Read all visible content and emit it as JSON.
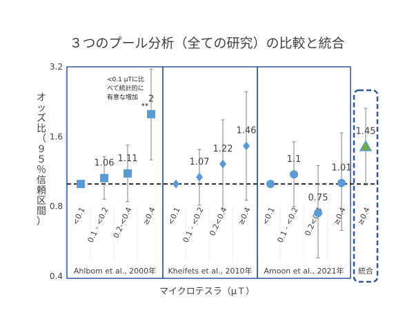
{
  "chart_data": {
    "type": "scatter",
    "title": "３つのプール分析（全ての研究）の比較と統合",
    "ylabel": "オッズ比（９５％信頼区間）",
    "xlabel": "マイクロテスラ（μＴ）",
    "y_scale": "log",
    "ylim": [
      0.4,
      3.2
    ],
    "yticks": [
      "3.2",
      "1.6",
      "0.8",
      "0.4"
    ],
    "ytick_values": [
      3.2,
      1.6,
      0.8,
      0.4
    ],
    "reference_line": 1.0,
    "annotation_text": "<0.1 μTに比べて統計的に有意な増加",
    "annotation_lines": [
      "<0.1 μTに比",
      "べて統計的に",
      "有意な増加"
    ],
    "groups": [
      {
        "label": "Ahlbom et al., 2000年",
        "marker": "square",
        "categories": [
          "<0.1",
          "0.1 - <0.2",
          "0.2-<0.4",
          "≥0.4"
        ],
        "points": [
          {
            "x": "<0.1",
            "y": 1.0,
            "low": null,
            "high": null,
            "label": ""
          },
          {
            "x": "0.1 - <0.2",
            "y": 1.06,
            "low": 0.86,
            "high": 1.31,
            "label": "1.06"
          },
          {
            "x": "0.2-<0.4",
            "y": 1.11,
            "low": 0.84,
            "high": 1.47,
            "label": "1.11"
          },
          {
            "x": "≥0.4",
            "y": 2.0,
            "low": 1.27,
            "high": 3.13,
            "label": "2",
            "marker_text": "**"
          }
        ]
      },
      {
        "label": "Kheifets et al., 2010年",
        "marker": "diamond",
        "categories": [
          "<0.1",
          "0.1 - <0.2",
          "0.2<0.4",
          "≥0.4"
        ],
        "points": [
          {
            "x": "<0.1",
            "y": 1.0,
            "low": null,
            "high": null,
            "label": ""
          },
          {
            "x": "0.1 - <0.2",
            "y": 1.07,
            "low": 0.81,
            "high": 1.41,
            "label": "1.07"
          },
          {
            "x": "0.2<0.4",
            "y": 1.22,
            "low": 0.78,
            "high": 1.89,
            "label": "1.22"
          },
          {
            "x": "≥0.4",
            "y": 1.46,
            "low": 0.85,
            "high": 2.5,
            "label": "1.46"
          }
        ]
      },
      {
        "label": "Amoon et al., 2021年",
        "marker": "circle",
        "categories": [
          "<0.1",
          "0.1 - <0.2",
          "0.2<0.4",
          "≥0.4"
        ],
        "points": [
          {
            "x": "<0.1",
            "y": 1.0,
            "low": null,
            "high": null,
            "label": ""
          },
          {
            "x": "0.1 - <0.2",
            "y": 1.1,
            "low": 0.8,
            "high": 1.52,
            "label": "1.1"
          },
          {
            "x": "0.2<0.4",
            "y": 0.75,
            "low": 0.48,
            "high": 1.2,
            "label": "0.75"
          },
          {
            "x": "≥0.4",
            "y": 1.01,
            "low": 0.63,
            "high": 1.66,
            "label": "1.01"
          }
        ]
      },
      {
        "label": "統合",
        "marker": "triangle",
        "categories": [
          "≥0.4"
        ],
        "points": [
          {
            "x": "≥0.4",
            "y": 1.45,
            "low": 0.99,
            "high": 2.12,
            "label": "1.45"
          }
        ]
      }
    ],
    "colors": {
      "marker": "#5b9bd5",
      "triangle": "#70ad47",
      "frame": "#2f5597",
      "whisker": "#808080",
      "text": "#404040"
    },
    "grid": false
  }
}
